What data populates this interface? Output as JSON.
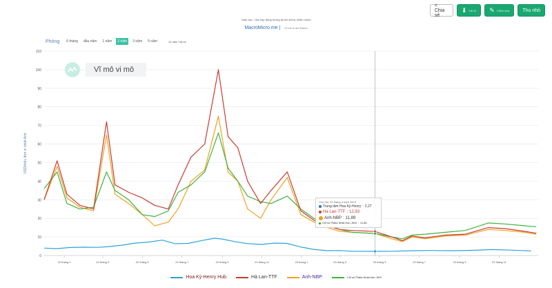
{
  "toolbar": {
    "share_label": "< Chia sẻ",
    "download_label": "Tải về",
    "edit_label": "Chỉnh sửa",
    "collapse_label": "Thu nhỏ"
  },
  "header": {
    "title": "Toàn cầu - Giá hợp đồng tương lai khí đốt tự nhiên chính",
    "brand": "MacroMicro.me",
    "brand_sub": "Vĩ mô vi mô Saves"
  },
  "range": {
    "label": "Phóng",
    "options": [
      "6 tháng",
      "đầu năm",
      "1 năm",
      "2 năm",
      "3 năm",
      "5 năm"
    ],
    "active_index": 3,
    "extra": "10 năm Tất cả"
  },
  "watermark": {
    "text": "Vĩ mô vi mô"
  },
  "tooltip": {
    "date": "Thứ hai, 24 tháng 4 năm 2023",
    "rows": [
      {
        "label": "Trung tâm Hoa Kỳ-Henry",
        "value": "2,27",
        "color": "#1f77b4"
      },
      {
        "label": "Hà Lan-TTF",
        "value": "12,93",
        "color": "#c93a2d"
      },
      {
        "label": "Anh-NBP",
        "value": "11,89",
        "color": "#f0a020"
      },
      {
        "label": "Chỉ số Platts Nhật-Hàn JKM",
        "value": "11,86",
        "color": "#2ca02c"
      }
    ]
  },
  "chart_data": {
    "type": "line",
    "ylabel": "USD/triệu đơn vị nhiệt Anh",
    "ylim": [
      0,
      110
    ],
    "yticks": [
      0,
      10,
      20,
      30,
      40,
      50,
      60,
      70,
      80,
      90,
      100,
      110
    ],
    "x_tick_labels": [
      "22 tháng 1",
      "22 tháng 3",
      "22 tháng 5",
      "22 tháng 7",
      "22 tháng 9",
      "22 tháng 11",
      "23 tháng 1",
      "23 tháng 3",
      "23 tháng 5",
      "23 tháng 7",
      "23 tháng 9",
      "23 tháng 11"
    ],
    "x_range": [
      "2021-12-01",
      "2023-12-31"
    ],
    "crosshair_date": "2023-04-24",
    "grid": true,
    "legend_position": "bottom",
    "series": [
      {
        "name": "Hoa Kỳ-Henry Hub",
        "color": "#29a3d9",
        "points": [
          [
            "2021-12-01",
            4.0
          ],
          [
            "2021-12-20",
            3.7
          ],
          [
            "2022-01-10",
            4.3
          ],
          [
            "2022-02-01",
            4.5
          ],
          [
            "2022-02-20",
            4.4
          ],
          [
            "2022-03-10",
            4.8
          ],
          [
            "2022-04-01",
            5.6
          ],
          [
            "2022-04-20",
            6.7
          ],
          [
            "2022-05-10",
            7.2
          ],
          [
            "2022-06-01",
            8.3
          ],
          [
            "2022-06-20",
            6.4
          ],
          [
            "2022-07-10",
            6.5
          ],
          [
            "2022-08-01",
            8.1
          ],
          [
            "2022-08-20",
            9.3
          ],
          [
            "2022-09-01",
            8.9
          ],
          [
            "2022-09-20",
            7.5
          ],
          [
            "2022-10-10",
            6.4
          ],
          [
            "2022-11-01",
            6.0
          ],
          [
            "2022-11-20",
            6.7
          ],
          [
            "2022-12-10",
            6.5
          ],
          [
            "2023-01-01",
            4.5
          ],
          [
            "2023-01-20",
            3.3
          ],
          [
            "2023-02-10",
            2.6
          ],
          [
            "2023-03-01",
            2.7
          ],
          [
            "2023-03-20",
            2.3
          ],
          [
            "2023-04-24",
            2.27
          ],
          [
            "2023-05-20",
            2.3
          ],
          [
            "2023-06-20",
            2.6
          ],
          [
            "2023-07-20",
            2.7
          ],
          [
            "2023-08-20",
            2.6
          ],
          [
            "2023-09-20",
            2.8
          ],
          [
            "2023-10-20",
            3.2
          ],
          [
            "2023-11-20",
            2.9
          ],
          [
            "2023-12-20",
            2.5
          ]
        ]
      },
      {
        "name": "Hà Lan-TTF",
        "color": "#c93a2d",
        "points": [
          [
            "2021-12-01",
            30.0
          ],
          [
            "2021-12-21",
            51.0
          ],
          [
            "2022-01-05",
            33.0
          ],
          [
            "2022-01-25",
            27.0
          ],
          [
            "2022-02-15",
            25.0
          ],
          [
            "2022-03-07",
            72.0
          ],
          [
            "2022-03-20",
            38.0
          ],
          [
            "2022-04-10",
            34.0
          ],
          [
            "2022-05-01",
            31.0
          ],
          [
            "2022-05-20",
            27.0
          ],
          [
            "2022-06-10",
            25.0
          ],
          [
            "2022-06-25",
            38.0
          ],
          [
            "2022-07-15",
            53.0
          ],
          [
            "2022-08-05",
            60.0
          ],
          [
            "2022-08-26",
            100.0
          ],
          [
            "2022-09-10",
            64.0
          ],
          [
            "2022-09-25",
            58.0
          ],
          [
            "2022-10-10",
            40.0
          ],
          [
            "2022-10-30",
            28.0
          ],
          [
            "2022-11-15",
            35.0
          ],
          [
            "2022-12-10",
            45.0
          ],
          [
            "2022-12-31",
            24.0
          ],
          [
            "2023-01-20",
            19.0
          ],
          [
            "2023-02-10",
            16.0
          ],
          [
            "2023-03-01",
            14.0
          ],
          [
            "2023-03-20",
            13.5
          ],
          [
            "2023-04-24",
            12.93
          ],
          [
            "2023-05-20",
            10.0
          ],
          [
            "2023-06-05",
            8.0
          ],
          [
            "2023-06-20",
            10.5
          ],
          [
            "2023-07-10",
            9.5
          ],
          [
            "2023-08-10",
            11.0
          ],
          [
            "2023-09-10",
            11.5
          ],
          [
            "2023-10-15",
            15.0
          ],
          [
            "2023-11-10",
            14.5
          ],
          [
            "2023-12-10",
            13.0
          ],
          [
            "2023-12-28",
            12.0
          ]
        ]
      },
      {
        "name": "Anh-NBP",
        "color": "#f0a020",
        "points": [
          [
            "2021-12-01",
            30.0
          ],
          [
            "2021-12-21",
            48.0
          ],
          [
            "2022-01-05",
            31.0
          ],
          [
            "2022-01-25",
            26.0
          ],
          [
            "2022-02-15",
            24.0
          ],
          [
            "2022-03-07",
            65.0
          ],
          [
            "2022-03-20",
            33.0
          ],
          [
            "2022-04-10",
            28.0
          ],
          [
            "2022-05-01",
            22.0
          ],
          [
            "2022-05-20",
            16.0
          ],
          [
            "2022-06-10",
            18.0
          ],
          [
            "2022-06-25",
            25.0
          ],
          [
            "2022-07-15",
            40.0
          ],
          [
            "2022-08-05",
            46.0
          ],
          [
            "2022-08-26",
            75.0
          ],
          [
            "2022-09-10",
            45.0
          ],
          [
            "2022-09-25",
            40.0
          ],
          [
            "2022-10-10",
            25.0
          ],
          [
            "2022-10-30",
            20.0
          ],
          [
            "2022-11-15",
            30.0
          ],
          [
            "2022-12-10",
            42.0
          ],
          [
            "2022-12-31",
            22.0
          ],
          [
            "2023-01-20",
            18.0
          ],
          [
            "2023-02-10",
            15.0
          ],
          [
            "2023-03-01",
            13.0
          ],
          [
            "2023-03-20",
            12.5
          ],
          [
            "2023-04-24",
            11.89
          ],
          [
            "2023-05-20",
            9.0
          ],
          [
            "2023-06-05",
            7.5
          ],
          [
            "2023-06-20",
            10.0
          ],
          [
            "2023-07-10",
            9.0
          ],
          [
            "2023-08-10",
            10.5
          ],
          [
            "2023-09-10",
            11.0
          ],
          [
            "2023-10-15",
            14.0
          ],
          [
            "2023-11-10",
            13.5
          ],
          [
            "2023-12-10",
            12.5
          ],
          [
            "2023-12-28",
            11.5
          ]
        ]
      },
      {
        "name": "Chỉ số Platts Nhật-Hàn JKM",
        "color": "#3db23d",
        "points": [
          [
            "2021-12-01",
            36.0
          ],
          [
            "2021-12-21",
            45.0
          ],
          [
            "2022-01-05",
            28.0
          ],
          [
            "2022-01-25",
            25.0
          ],
          [
            "2022-02-15",
            26.0
          ],
          [
            "2022-03-07",
            45.0
          ],
          [
            "2022-03-20",
            35.0
          ],
          [
            "2022-04-10",
            30.0
          ],
          [
            "2022-05-01",
            22.0
          ],
          [
            "2022-05-20",
            21.0
          ],
          [
            "2022-06-10",
            24.0
          ],
          [
            "2022-06-25",
            34.0
          ],
          [
            "2022-07-15",
            38.0
          ],
          [
            "2022-08-05",
            45.0
          ],
          [
            "2022-08-26",
            66.0
          ],
          [
            "2022-09-10",
            47.0
          ],
          [
            "2022-09-25",
            40.0
          ],
          [
            "2022-10-10",
            32.0
          ],
          [
            "2022-10-30",
            29.0
          ],
          [
            "2022-11-15",
            28.0
          ],
          [
            "2022-12-10",
            32.0
          ],
          [
            "2022-12-31",
            25.0
          ],
          [
            "2023-01-20",
            20.0
          ],
          [
            "2023-02-10",
            16.0
          ],
          [
            "2023-03-01",
            14.0
          ],
          [
            "2023-03-20",
            12.5
          ],
          [
            "2023-04-24",
            11.86
          ],
          [
            "2023-05-20",
            10.0
          ],
          [
            "2023-06-05",
            9.0
          ],
          [
            "2023-06-20",
            11.0
          ],
          [
            "2023-07-10",
            11.5
          ],
          [
            "2023-08-10",
            12.5
          ],
          [
            "2023-09-10",
            13.5
          ],
          [
            "2023-10-15",
            17.5
          ],
          [
            "2023-11-10",
            17.0
          ],
          [
            "2023-12-10",
            16.0
          ],
          [
            "2023-12-28",
            15.5
          ]
        ]
      }
    ]
  },
  "legend": [
    {
      "label": "Hoa Kỳ-Henry Hub",
      "color": "#29a3d9",
      "cls": "hh"
    },
    {
      "label": "Hà Lan-TTF",
      "color": "#c93a2d",
      "cls": ""
    },
    {
      "label": "Anh-NBP",
      "color": "#f0a020",
      "cls": "nbp"
    },
    {
      "label": "Chỉ số Platts Nhật-Hàn JKM",
      "color": "#3db23d",
      "cls": "small"
    }
  ]
}
